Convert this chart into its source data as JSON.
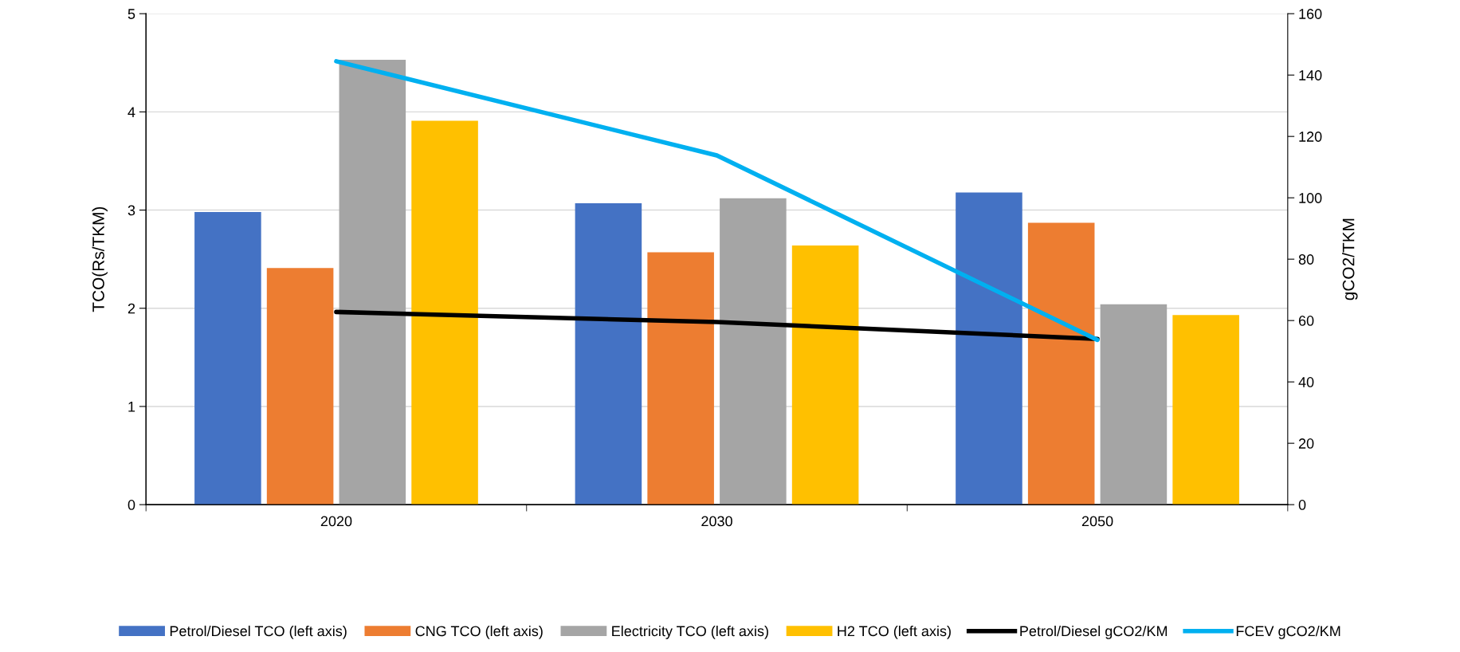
{
  "chart_data": {
    "type": "bar",
    "categories": [
      "2020",
      "2030",
      "2050"
    ],
    "ylabel": "TCO(Rs/TKM)",
    "y2label": "gCO2/TKM",
    "ylim": [
      0,
      5
    ],
    "yticks": [
      0,
      1,
      2,
      3,
      4,
      5
    ],
    "y2lim": [
      0,
      160
    ],
    "y2ticks": [
      0,
      20,
      40,
      60,
      80,
      100,
      120,
      140,
      160
    ],
    "grid": "y",
    "legend": "bottom",
    "series": [
      {
        "name": "Petrol/Diesel TCO (left axis)",
        "color": "#4472c4",
        "values": [
          2.98,
          3.07,
          3.18
        ]
      },
      {
        "name": "CNG TCO (left axis)",
        "color": "#ed7d31",
        "values": [
          2.41,
          2.57,
          2.87
        ]
      },
      {
        "name": "Electricity TCO (left axis)",
        "color": "#a5a5a5",
        "values": [
          4.53,
          3.12,
          2.04
        ]
      },
      {
        "name": "H2 TCO (left axis)",
        "color": "#ffc000",
        "values": [
          3.91,
          2.64,
          1.93
        ]
      },
      {
        "name": "Petrol/Diesel gCO2/KM",
        "color": "#000000",
        "type": "line",
        "axis": "y2",
        "values": [
          62.8,
          59.5,
          54
        ]
      },
      {
        "name": "FCEV gCO2/KM",
        "color": "#00b0f0",
        "type": "line",
        "axis": "y2",
        "values": [
          144.5,
          113.8,
          53.7
        ]
      }
    ]
  }
}
